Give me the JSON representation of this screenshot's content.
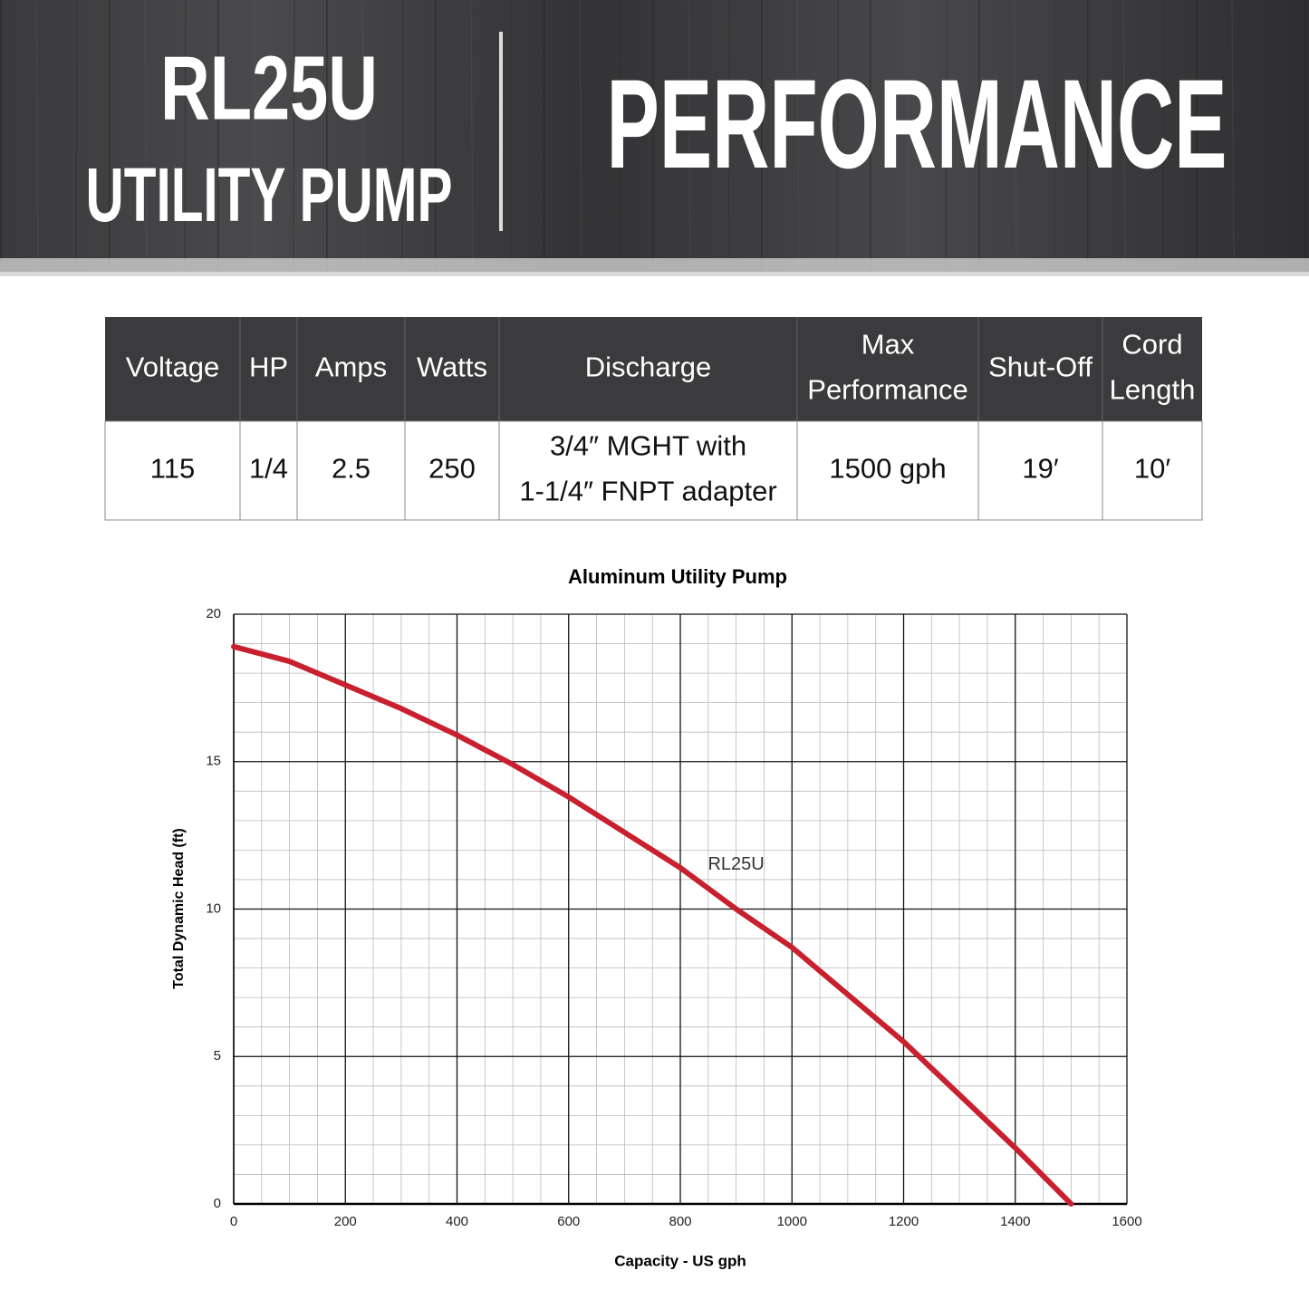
{
  "header": {
    "model": "RL25U",
    "product": "UTILITY PUMP",
    "title": "PERFORMANCE"
  },
  "table": {
    "header": [
      [
        "Voltage"
      ],
      [
        "HP"
      ],
      [
        "Amps"
      ],
      [
        "Watts"
      ],
      [
        "Discharge"
      ],
      [
        "Max",
        "Performance"
      ],
      [
        "Shut-Off"
      ],
      [
        "Cord",
        "Length"
      ]
    ],
    "rows": [
      [
        [
          "115"
        ],
        [
          "1/4"
        ],
        [
          "2.5"
        ],
        [
          "250"
        ],
        [
          "3/4″ MGHT with",
          "1-1/4″ FNPT adapter"
        ],
        [
          "1500 gph"
        ],
        [
          "19′"
        ],
        [
          "10′"
        ]
      ]
    ]
  },
  "chart_data": {
    "type": "line",
    "title": "Aluminum Utility Pump",
    "x_label": "Capacity - US gph",
    "y_label": "Total Dynamic Head (ft)",
    "x": [
      0,
      100,
      200,
      300,
      400,
      500,
      600,
      700,
      800,
      900,
      1000,
      1100,
      1200,
      1300,
      1400,
      1500
    ],
    "series": [
      {
        "name": "RL25U",
        "color": "#c8202e",
        "values": [
          18.9,
          18.4,
          17.6,
          16.8,
          15.9,
          14.9,
          13.8,
          12.6,
          11.4,
          10.0,
          8.7,
          7.1,
          5.5,
          3.7,
          1.9,
          0
        ]
      }
    ],
    "annotation": {
      "text": "RL25U",
      "x": 900,
      "y": 11.5
    },
    "xlim": [
      0,
      1600
    ],
    "ylim": [
      0,
      20
    ],
    "xticks": [
      0,
      200,
      400,
      600,
      800,
      1000,
      1200,
      1400,
      1600
    ],
    "yticks": [
      0,
      5,
      10,
      15,
      20
    ],
    "grid": true
  }
}
